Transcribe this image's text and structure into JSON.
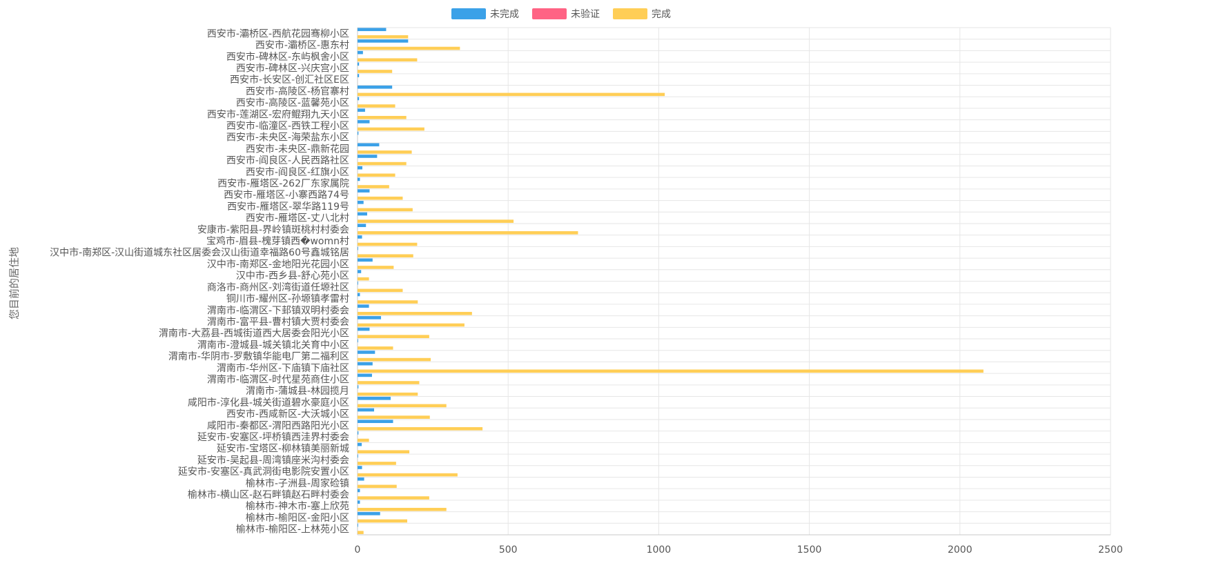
{
  "colors": {
    "grid": "#e6e6e6",
    "axis": "#c8c8c8",
    "label": "#555555"
  },
  "chart_data": {
    "type": "bar",
    "orientation": "horizontal",
    "ylabel": "您目前的居住地",
    "xlim": [
      0,
      2500
    ],
    "xticks": [
      0,
      500,
      1000,
      1500,
      2000,
      2500
    ],
    "grid": true,
    "legend_position": "top-center",
    "categories": [
      "西安市-灞桥区-西航花园骞柳小区",
      "西安市-灞桥区-惠东村",
      "西安市-碑林区-东屿枫舍小区",
      "西安市-碑林区-兴庆宫小区",
      "西安市-长安区-创汇社区E区",
      "西安市-高陵区-杨官寨村",
      "西安市-高陵区-蓝馨苑小区",
      "西安市-莲湖区-宏府鲲翔九天小区",
      "西安市-临潼区-西铁工程小区",
      "西安市-未央区-海荣盐东小区",
      "西安市-未央区-鼎新花园",
      "西安市-阎良区-人民西路社区",
      "西安市-阎良区-红旗小区",
      "西安市-雁塔区-262厂东家属院",
      "西安市-雁塔区-小寨西路74号",
      "西安市-雁塔区-翠华路119号",
      "西安市-雁塔区-丈八北村",
      "安康市-紫阳县-界岭镇斑桃村村委会",
      "宝鸡市-眉县-槐芽镇西�womn村",
      "汉中市-南郑区-汉山街道城东社区居委会汉山街道幸福路60号鑫城铭居",
      "汉中市-南郑区-金地阳光花园小区",
      "汉中市-西乡县-舒心苑小区",
      "商洛市-商州区-刘湾街道任塬社区",
      "铜川市-耀州区-孙塬镇孝雷村",
      "渭南市-临渭区-下邽镇双明村委会",
      "渭南市-富平县-曹村镇大贾村委会",
      "渭南市-大荔县-西城街道西大居委会阳光小区",
      "渭南市-澄城县-城关镇北关育中小区",
      "渭南市-华阴市-罗敷镇华能电厂第二福利区",
      "渭南市-华州区-下庙镇下庙社区",
      "渭南市-临渭区-时代星苑商住小区",
      "渭南市-蒲城县-林园揽月",
      "咸阳市-淳化县-城关街道碧水豪庭小区",
      "西安市-西咸新区-大沃城小区",
      "咸阳市-秦都区-渭阳西路阳光小区",
      "延安市-安塞区-坪桥镇西洼界村委会",
      "延安市-宝塔区-柳林镇美丽新城",
      "延安市-吴起县-周湾镇座米沟村委会",
      "延安市-安塞区-真武洞街电影院安置小区",
      "榆林市-子洲县-周家硷镇",
      "榆林市-横山区-赵石畔镇赵石畔村委会",
      "榆林市-神木市-塞上欣苑",
      "榆林市-榆阳区-金阳小区",
      "榆林市-榆阳区-上林苑小区"
    ],
    "series": [
      {
        "name": "未完成",
        "color": "#3ba1e8",
        "values": [
          95,
          168,
          18,
          5,
          5,
          115,
          5,
          25,
          40,
          3,
          72,
          65,
          16,
          8,
          40,
          20,
          32,
          28,
          15,
          2,
          50,
          12,
          2,
          8,
          38,
          78,
          40,
          2,
          58,
          50,
          48,
          3,
          110,
          55,
          118,
          3,
          14,
          2,
          15,
          22,
          8,
          8,
          75,
          2
        ]
      },
      {
        "name": "未验证",
        "color": "#ff6384",
        "values": [
          0,
          0,
          0,
          0,
          0,
          0,
          0,
          0,
          0,
          0,
          0,
          0,
          0,
          0,
          0,
          0,
          0,
          0,
          0,
          0,
          0,
          0,
          0,
          0,
          0,
          0,
          0,
          0,
          0,
          0,
          0,
          0,
          0,
          0,
          0,
          0,
          0,
          0,
          0,
          0,
          0,
          0,
          0,
          0
        ]
      },
      {
        "name": "完成",
        "color": "#ffce56",
        "values": [
          168,
          340,
          198,
          115,
          0,
          1020,
          125,
          162,
          222,
          0,
          180,
          162,
          125,
          105,
          150,
          183,
          518,
          732,
          198,
          185,
          120,
          38,
          150,
          200,
          380,
          355,
          238,
          118,
          243,
          2078,
          205,
          200,
          295,
          240,
          415,
          38,
          172,
          128,
          332,
          130,
          238,
          295,
          165,
          20
        ]
      }
    ]
  }
}
